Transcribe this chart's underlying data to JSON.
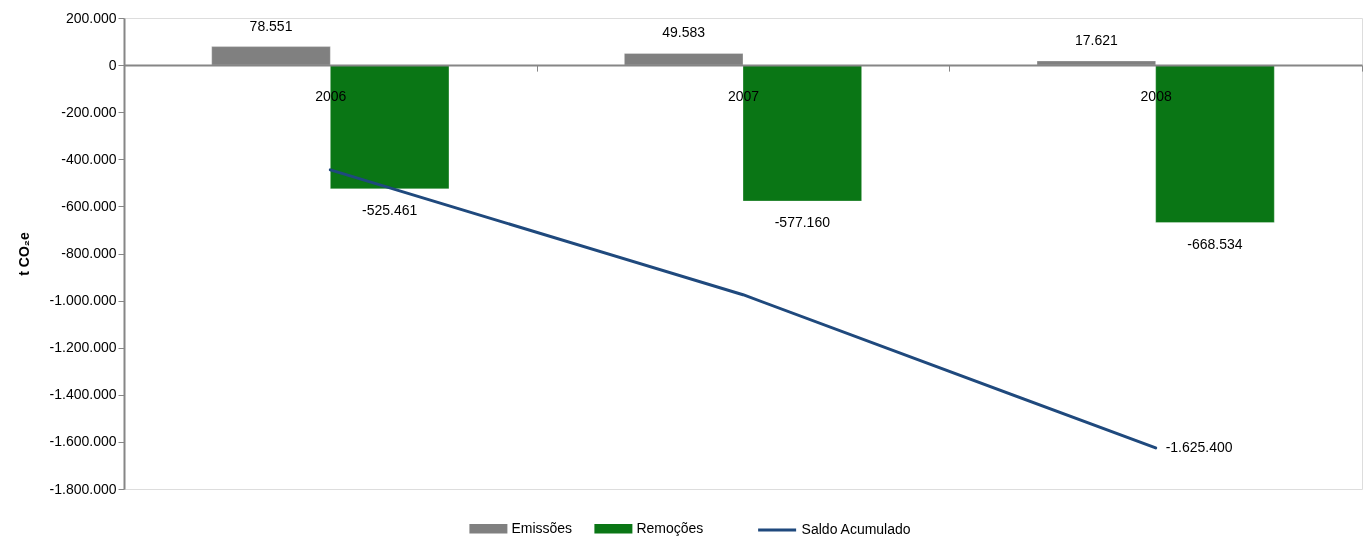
{
  "chart_data": {
    "type": "bar",
    "categories": [
      "2006",
      "2007",
      "2008"
    ],
    "ylabel": "t CO₂e",
    "ylim": [
      -1800000,
      200000
    ],
    "yticks": [
      {
        "value": 200000,
        "label": "200.000"
      },
      0,
      {
        "value": -200000,
        "label": "-200.000"
      },
      {
        "value": -400000,
        "label": "-400.000"
      },
      {
        "value": -600000,
        "label": "-600.000"
      },
      {
        "value": -800000,
        "label": "-800.000"
      },
      {
        "value": -1000000,
        "label": "-1.000.000"
      },
      {
        "value": -1200000,
        "label": "-1.200.000"
      },
      {
        "value": -1400000,
        "label": "-1.400.000"
      },
      {
        "value": -1600000,
        "label": "-1.600.000"
      },
      {
        "value": -1800000,
        "label": "-1.800.000"
      }
    ],
    "series": [
      {
        "name": "Emissões",
        "color": "#808080",
        "values": [
          78551,
          49583,
          17621
        ],
        "value_labels": [
          "78.551",
          "49.583",
          "17.621"
        ]
      },
      {
        "name": "Remoções",
        "color": "#0a7615",
        "values": [
          -525461,
          -577160,
          -668534
        ],
        "value_labels": [
          "-525.461",
          "-577.160",
          "-668.534"
        ]
      },
      {
        "name": "Saldo Acumulado",
        "type": "line",
        "color": "#1f497d",
        "values": [
          -445000,
          -975000,
          -1625400
        ],
        "value_labels": [
          null,
          null,
          "-1.625.400"
        ]
      }
    ],
    "legend": "bottom",
    "grid": false
  }
}
